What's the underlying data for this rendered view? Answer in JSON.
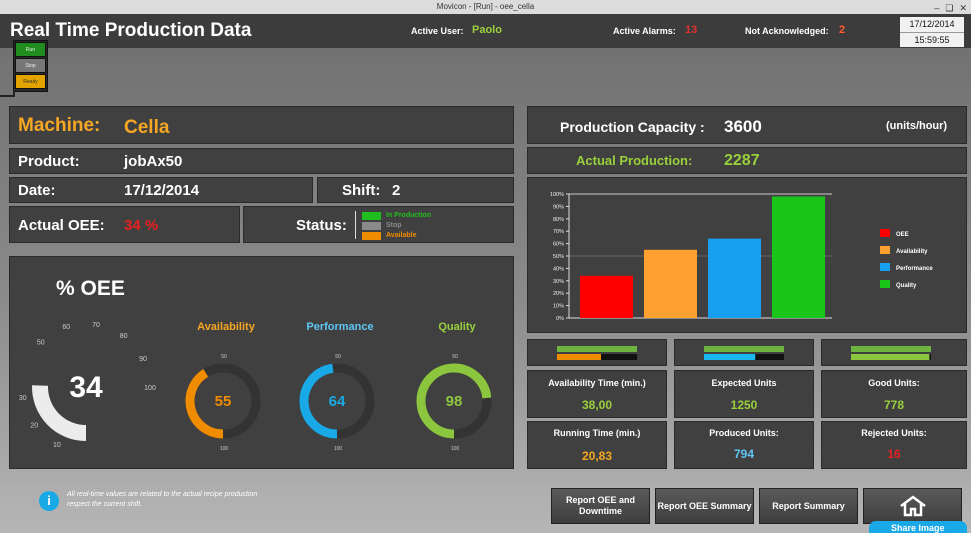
{
  "window": {
    "title": "Movicon - [Run] - oee_cella"
  },
  "header": {
    "title": "Real Time Production Data",
    "active_user_label": "Active User:",
    "active_user": "Paolo",
    "active_alarms_label": "Active Alarms:",
    "active_alarms": "13",
    "not_ack_label": "Not Acknowledged:",
    "not_ack": "2",
    "date": "17/12/2014",
    "time": "15:59:55"
  },
  "traffic_light": {
    "run": "Run",
    "stop": "Stop",
    "ready": "Ready"
  },
  "machine": {
    "label": "Machine:",
    "value": "Cella"
  },
  "product": {
    "label": "Product:",
    "value": "jobAx50"
  },
  "date_row": {
    "label": "Date:",
    "value": "17/12/2014"
  },
  "shift": {
    "label": "Shift:",
    "value": "2"
  },
  "actual_oee": {
    "label": "Actual OEE:",
    "value": "34 %"
  },
  "status": {
    "label": "Status:",
    "legend": [
      {
        "text": "In Production",
        "color": "#1fbf1f"
      },
      {
        "text": "Stop",
        "color": "#8a8a8a"
      },
      {
        "text": "Available",
        "color": "#f08c00"
      }
    ]
  },
  "oee_panel": {
    "title": "% OEE",
    "main_value": 34,
    "main_display": "34",
    "main_scale": [
      "10",
      "20",
      "30",
      "50",
      "60",
      "70",
      "80",
      "90",
      "100"
    ],
    "gauges": [
      {
        "title": "Availability",
        "value": 55,
        "display": "55",
        "color": "#f08c00",
        "title_color": "#f5a623"
      },
      {
        "title": "Performance",
        "value": 64,
        "display": "64",
        "color": "#19a9e6",
        "title_color": "#5fc6f5"
      },
      {
        "title": "Quality",
        "value": 98,
        "display": "98",
        "color": "#8cc63f",
        "title_color": "#9ad03b"
      }
    ],
    "small_scale_top": "50",
    "small_scale_bottom": "100"
  },
  "capacity": {
    "label": "Production Capacity :",
    "value": "3600",
    "unit": "(units/hour)"
  },
  "actual_production": {
    "label": "Actual Production:",
    "value": "2287"
  },
  "chart_data": {
    "type": "bar",
    "categories": [
      "OEE",
      "Availability",
      "Performance",
      "Quality"
    ],
    "values": [
      34,
      55,
      64,
      98
    ],
    "colors": [
      "#ff0000",
      "#ffa030",
      "#17a0f0",
      "#19c619"
    ],
    "ylim": [
      0,
      100
    ],
    "yticks": [
      "0%",
      "10%",
      "20%",
      "30%",
      "40%",
      "50%",
      "60%",
      "70%",
      "80%",
      "90%",
      "100%"
    ],
    "legend_position": "right",
    "legend": [
      "OEE",
      "Availability",
      "Performance",
      "Quality"
    ]
  },
  "stats": {
    "availability_time": {
      "label": "Availability Time (min.)",
      "value": "38,00"
    },
    "running_time": {
      "label": "Running Time (min.)",
      "value": "20,83"
    },
    "expected_units": {
      "label": "Expected Units",
      "value": "1250"
    },
    "produced_units": {
      "label": "Produced Units:",
      "value": "794"
    },
    "good_units": {
      "label": "Good Units:",
      "value": "778"
    },
    "rejected_units": {
      "label": "Rejected Units:",
      "value": "16"
    }
  },
  "progress_bars": [
    {
      "top_fill": 1.0,
      "bottom_fill": 0.55,
      "bottom_color": "#f08c00"
    },
    {
      "top_fill": 1.0,
      "bottom_fill": 0.64,
      "bottom_color": "#19b8f0"
    },
    {
      "top_fill": 1.0,
      "bottom_fill": 0.98,
      "bottom_color": "#8cc63f"
    }
  ],
  "info_note": "All real-time values are related to the actual recipe production respect the current shift.",
  "buttons": {
    "report_oee_downtime": "Report OEE and Downtime",
    "report_oee_summary": "Report OEE Summary",
    "report_summary": "Report Summary"
  },
  "share_overlay": "Share Image"
}
